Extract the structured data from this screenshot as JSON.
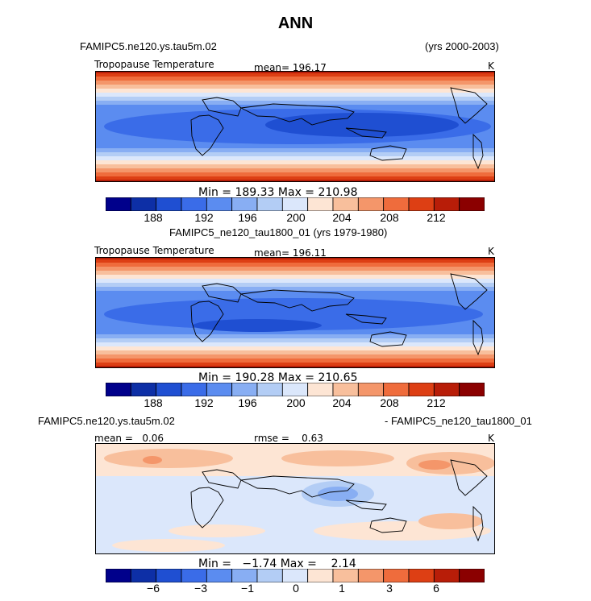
{
  "figure": {
    "title": "ANN",
    "panels": [
      {
        "case_left": "FAMIPC5.ne120.ys.tau5m.02",
        "case_right": "(yrs 2000-2003)",
        "field_label": "Tropopause Temperature",
        "mean_text": "mean= 196.17",
        "units": "K",
        "minmax_text": "Min = 189.33 Max = 210.98"
      },
      {
        "case_center": "FAMIPC5_ne120_tau1800_01 (yrs 1979-1980)",
        "field_label": "Tropopause Temperature",
        "mean_text": "mean= 196.11",
        "units": "K",
        "minmax_text": "Min = 190.28 Max = 210.65"
      },
      {
        "case_left": "FAMIPC5.ne120.ys.tau5m.02",
        "case_right": "- FAMIPC5_ne120_tau1800_01",
        "mean_text": "mean =   0.06",
        "rmse_text": "rmse =    0.63",
        "units": "K",
        "minmax_text": "Min =   −1.74 Max =    2.14"
      }
    ]
  },
  "colorbars": {
    "colors": [
      "#00008b",
      "#0d2fa6",
      "#1f4fd2",
      "#3a6ce8",
      "#5b8cf0",
      "#88aef3",
      "#b3cdf5",
      "#dbe7fb",
      "#fde5d4",
      "#f8bf9c",
      "#f4966a",
      "#ef6c3c",
      "#dd3f14",
      "#b81d08",
      "#8b0000"
    ],
    "absolute_ticks": [
      "188",
      "192",
      "196",
      "200",
      "204",
      "208",
      "212"
    ],
    "diff_ticks": [
      "−6",
      "−3",
      "−1",
      "0",
      "1",
      "3",
      "6"
    ]
  },
  "map_data": {
    "projection": "cylindrical equidistant, global, central longitude 180E",
    "variable": "Tropopause Temperature (K), annual mean",
    "panel_1_range_K": [
      189.33,
      210.98
    ],
    "panel_2_range_K": [
      190.28,
      210.65
    ],
    "difference_range_K": [
      -1.74,
      2.14
    ]
  }
}
